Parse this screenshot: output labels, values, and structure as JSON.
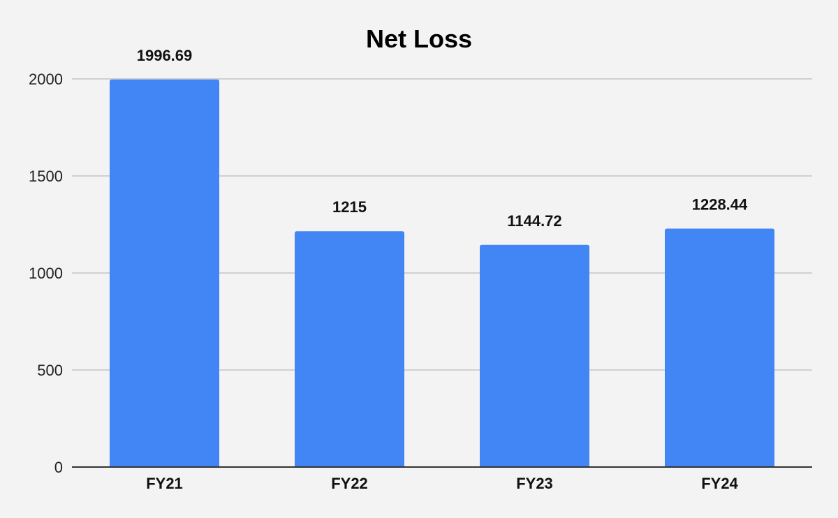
{
  "chart_data": {
    "type": "bar",
    "title": "Net Loss",
    "xlabel": "",
    "ylabel": "",
    "categories": [
      "FY21",
      "FY22",
      "FY23",
      "FY24"
    ],
    "values": [
      1996.69,
      1215,
      1144.72,
      1228.44
    ],
    "data_labels": [
      "1996.69",
      "1215",
      "1144.72",
      "1228.44"
    ],
    "ylim": [
      0,
      2000
    ],
    "yticks": [
      0,
      500,
      1000,
      1500,
      2000
    ],
    "ytick_labels": [
      "0",
      "500",
      "1000",
      "1500",
      "2000"
    ],
    "grid": true,
    "legend": "none",
    "colors": {
      "bar": "#4285f4",
      "background": "#f3f3f3",
      "gridline": "#c4c4c4",
      "axis": "#333333"
    }
  }
}
